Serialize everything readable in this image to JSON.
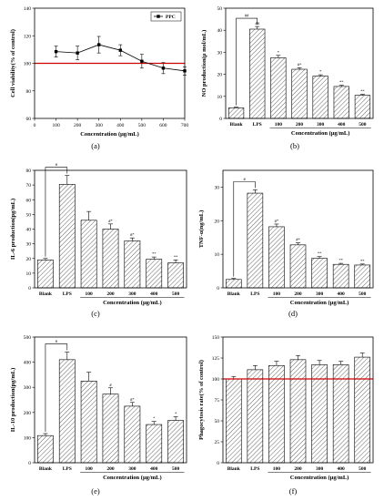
{
  "colors": {
    "reference_line": "#cc0000",
    "bar_hatch": "#666666",
    "axis": "#000000"
  },
  "chart_data": [
    {
      "panel": "(a)",
      "type": "line",
      "xlabel": "Concentration (μg/mL)",
      "ylabel": "Cell viability(% of control)",
      "xlim": [
        0,
        700
      ],
      "ylim": [
        60,
        140
      ],
      "xticks": [
        0,
        100,
        200,
        300,
        400,
        500,
        600,
        700
      ],
      "yticks": [
        60,
        80,
        100,
        120,
        140
      ],
      "reference_line": 100,
      "legend": [
        "PPC"
      ],
      "legend_position": "top-right",
      "series": [
        {
          "name": "PPC",
          "x": [
            100,
            200,
            300,
            400,
            500,
            600,
            700
          ],
          "values": [
            108.5,
            107.5,
            113.5,
            109.5,
            101.5,
            96.5,
            94.5
          ],
          "errors": [
            4,
            5,
            6,
            4,
            5,
            4,
            3
          ]
        }
      ]
    },
    {
      "panel": "(b)",
      "type": "bar",
      "xlabel": "Concentration (μg/mL)",
      "ylabel": "NO production(μ mol/mL)",
      "ylim": [
        0,
        50
      ],
      "yticks": [
        0,
        10,
        20,
        30,
        40,
        50
      ],
      "categories": [
        "Blank",
        "LPS",
        "100",
        "200",
        "300",
        "400",
        "500"
      ],
      "values": [
        4.8,
        40.5,
        27.5,
        22.3,
        19.2,
        14.5,
        10.5
      ],
      "errors": [
        0.3,
        1.2,
        1.1,
        0.7,
        0.6,
        0.5,
        0.4
      ],
      "significance": [
        "",
        "##",
        "*",
        "#*",
        "*",
        "**",
        "**"
      ],
      "bracket": {
        "from": "Blank",
        "to": "LPS",
        "label": "##"
      },
      "concentration_range": [
        "100",
        "500"
      ]
    },
    {
      "panel": "(c)",
      "type": "bar",
      "xlabel": "Concentration (μg/mL)",
      "ylabel": "IL-6 production(pg/mL)",
      "ylim": [
        0,
        80
      ],
      "yticks": [
        0,
        10,
        20,
        30,
        40,
        50,
        60,
        70,
        80
      ],
      "categories": [
        "Blank",
        "LPS",
        "100",
        "200",
        "300",
        "400",
        "500"
      ],
      "values": [
        19,
        70.5,
        46,
        40,
        32,
        19.5,
        17
      ],
      "errors": [
        1,
        6,
        6,
        3.5,
        2,
        1.5,
        2
      ],
      "significance": [
        "",
        "",
        "",
        "#*",
        "#*",
        "**",
        "**"
      ],
      "bracket": {
        "from": "Blank",
        "to": "LPS",
        "label": "#"
      },
      "concentration_range": [
        "100",
        "500"
      ]
    },
    {
      "panel": "(d)",
      "type": "bar",
      "xlabel": "Concentration (μg/mL)",
      "ylabel": "TNF-α(ng/mL)",
      "ylim": [
        0,
        35
      ],
      "yticks": [
        0,
        10,
        20,
        30
      ],
      "categories": [
        "Blank",
        "LPS",
        "100",
        "200",
        "300",
        "400",
        "500"
      ],
      "values": [
        2.5,
        28.2,
        18.2,
        12.8,
        8.8,
        7,
        6.8
      ],
      "errors": [
        0.3,
        1.0,
        0.8,
        0.6,
        0.5,
        0.3,
        0.3
      ],
      "significance": [
        "",
        "",
        "#*",
        "#*",
        "**",
        "**",
        "**"
      ],
      "bracket": {
        "from": "Blank",
        "to": "LPS",
        "label": "#"
      },
      "concentration_range": [
        "100",
        "500"
      ]
    },
    {
      "panel": "(e)",
      "type": "bar",
      "xlabel": "Concentration (μg/mL)",
      "ylabel": "IL-10 production(pg/mL)",
      "ylim": [
        0,
        500
      ],
      "yticks": [
        0,
        100,
        200,
        300,
        400,
        500
      ],
      "categories": [
        "Blank",
        "LPS",
        "100",
        "200",
        "300",
        "400",
        "500"
      ],
      "values": [
        108,
        410,
        325,
        273,
        225,
        152,
        168
      ],
      "errors": [
        8,
        30,
        35,
        25,
        15,
        12,
        15
      ],
      "significance": [
        "",
        "",
        "",
        "#",
        "#*",
        "*",
        "*"
      ],
      "bracket": {
        "from": "Blank",
        "to": "LPS",
        "label": "#"
      },
      "concentration_range": [
        "100",
        "500"
      ]
    },
    {
      "panel": "(f)",
      "type": "bar",
      "xlabel": "Concentration (μg/mL)",
      "ylabel": "Phagocytosis rate(% of control)",
      "ylim": [
        0,
        150
      ],
      "yticks": [
        0,
        25,
        50,
        75,
        100,
        125,
        150
      ],
      "reference_line": 100,
      "categories": [
        "Blank",
        "LPS",
        "100",
        "200",
        "300",
        "400",
        "500"
      ],
      "values": [
        100,
        111,
        116,
        123,
        117,
        117,
        126
      ],
      "errors": [
        3,
        5,
        5,
        5,
        5,
        4,
        5
      ],
      "significance": [
        "",
        "",
        "",
        "",
        "",
        "",
        ""
      ],
      "concentration_range": [
        "100",
        "500"
      ]
    }
  ]
}
